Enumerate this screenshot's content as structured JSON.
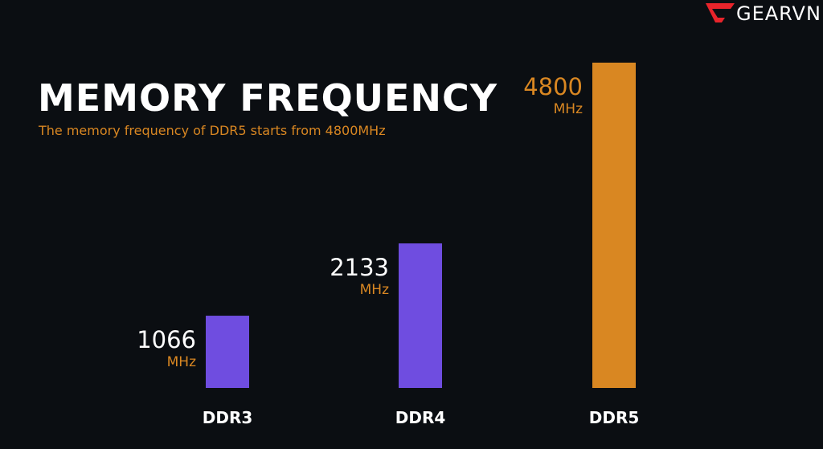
{
  "brand": {
    "name": "GEARVN",
    "color": "#e8242b"
  },
  "colors": {
    "background": "#0b0e12",
    "primary_bar": "#6f4de0",
    "highlight_bar": "#d98722",
    "accent_text": "#d98722",
    "label_text": "#ffffff"
  },
  "chart_data": {
    "type": "bar",
    "title": "MEMORY FREQUENCY",
    "subtitle": "The memory frequency of DDR5 starts from 4800MHz",
    "xlabel": "",
    "ylabel": "",
    "unit": "MHz",
    "ylim": [
      0,
      4800
    ],
    "grid": false,
    "categories": [
      "DDR3",
      "DDR4",
      "DDR5"
    ],
    "values": [
      1066,
      2133,
      4800
    ],
    "bars": [
      {
        "category": "DDR3",
        "value": 1066,
        "value_label": "1066",
        "unit_label": "MHz",
        "highlight": false
      },
      {
        "category": "DDR4",
        "value": 2133,
        "value_label": "2133",
        "unit_label": "MHz",
        "highlight": false
      },
      {
        "category": "DDR5",
        "value": 4800,
        "value_label": "4800",
        "unit_label": "MHz",
        "highlight": true
      }
    ]
  }
}
